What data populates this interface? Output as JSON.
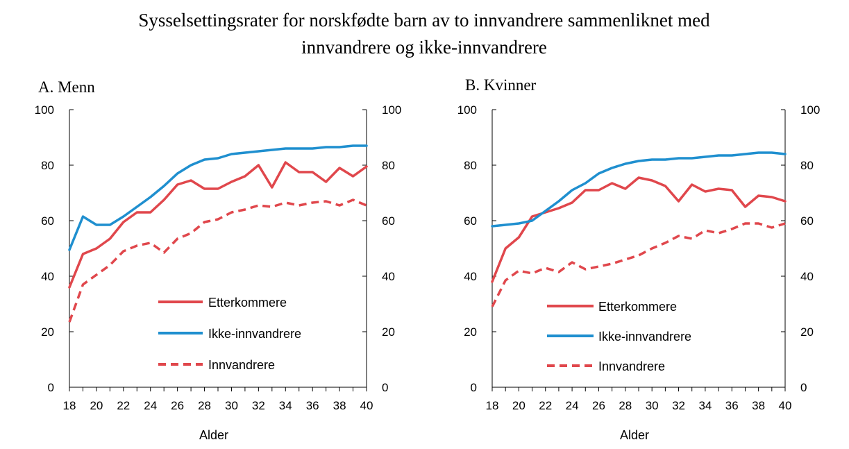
{
  "figure": {
    "title_line1": "Sysselsettingsrater for norskfødte barn av to innvandrere sammenliknet med",
    "title_line2": "innvandrere og ikke-innvandrere"
  },
  "colors": {
    "etterkommere": "#e0474c",
    "ikke_innvandrere": "#1f8fcf",
    "innvandrere": "#e0474c",
    "axis": "#000000"
  },
  "chart_data": [
    {
      "type": "line",
      "title": "A.  Menn",
      "xlabel": "Alder",
      "ylabel": "",
      "xlim": [
        18,
        40
      ],
      "ylim": [
        0,
        100
      ],
      "x_ticks": [
        18,
        20,
        22,
        24,
        26,
        28,
        30,
        32,
        34,
        36,
        38,
        40
      ],
      "y_ticks": [
        0,
        20,
        40,
        60,
        80,
        100
      ],
      "y_axis_right": true,
      "grid": false,
      "legend_position": "lower-right",
      "x": [
        18,
        19,
        20,
        21,
        22,
        23,
        24,
        25,
        26,
        27,
        28,
        29,
        30,
        31,
        32,
        33,
        34,
        35,
        36,
        37,
        38,
        39,
        40
      ],
      "series": [
        {
          "name": "Etterkommere",
          "style": "solid",
          "color_key": "etterkommere",
          "values": [
            36,
            48,
            50,
            53.5,
            59.5,
            63,
            63,
            67.5,
            73,
            74.5,
            71.5,
            71.5,
            74,
            76,
            80,
            72,
            81,
            77.5,
            77.5,
            74,
            79,
            76,
            79.5
          ]
        },
        {
          "name": "Ikke-innvandrere",
          "style": "solid",
          "color_key": "ikke_innvandrere",
          "values": [
            49.5,
            61.5,
            58.5,
            58.5,
            61.5,
            65,
            68.5,
            72.5,
            77,
            80,
            82,
            82.5,
            84,
            84.5,
            85,
            85.5,
            86,
            86,
            86,
            86.5,
            86.5,
            87,
            87
          ]
        },
        {
          "name": "Innvandrere",
          "style": "dashed",
          "color_key": "innvandrere",
          "values": [
            23.5,
            37,
            40.5,
            44,
            49,
            51,
            52,
            48.5,
            53.5,
            55.5,
            59.5,
            60.5,
            63,
            64,
            65.5,
            65,
            66.5,
            65.5,
            66.5,
            67,
            65.5,
            67.5,
            65.5
          ]
        }
      ]
    },
    {
      "type": "line",
      "title": "B.  Kvinner",
      "xlabel": "Alder",
      "ylabel": "",
      "xlim": [
        18,
        40
      ],
      "ylim": [
        0,
        100
      ],
      "x_ticks": [
        18,
        20,
        22,
        24,
        26,
        28,
        30,
        32,
        34,
        36,
        38,
        40
      ],
      "y_ticks": [
        0,
        20,
        40,
        60,
        80,
        100
      ],
      "y_axis_right": true,
      "grid": false,
      "legend_position": "lower-right",
      "x": [
        18,
        19,
        20,
        21,
        22,
        23,
        24,
        25,
        26,
        27,
        28,
        29,
        30,
        31,
        32,
        33,
        34,
        35,
        36,
        37,
        38,
        39,
        40
      ],
      "series": [
        {
          "name": "Etterkommere",
          "style": "solid",
          "color_key": "etterkommere",
          "values": [
            38,
            50,
            54,
            61.5,
            63,
            64.5,
            66.5,
            71,
            71,
            73.5,
            71.5,
            75.5,
            74.5,
            72.5,
            67,
            73,
            70.5,
            71.5,
            71,
            65,
            69,
            68.5,
            67
          ]
        },
        {
          "name": "Ikke-innvandrere",
          "style": "solid",
          "color_key": "ikke_innvandrere",
          "values": [
            58,
            58.5,
            59,
            60,
            63.5,
            67,
            71,
            73.5,
            77,
            79,
            80.5,
            81.5,
            82,
            82,
            82.5,
            82.5,
            83,
            83.5,
            83.5,
            84,
            84.5,
            84.5,
            84
          ]
        },
        {
          "name": "Innvandrere",
          "style": "dashed",
          "color_key": "innvandrere",
          "values": [
            29,
            38.5,
            42,
            41,
            43,
            41.5,
            45,
            42.5,
            43.5,
            44.5,
            46,
            47.5,
            50,
            52,
            54.5,
            53.5,
            56.5,
            55.5,
            57,
            59,
            59,
            57.5,
            59
          ]
        }
      ]
    }
  ]
}
